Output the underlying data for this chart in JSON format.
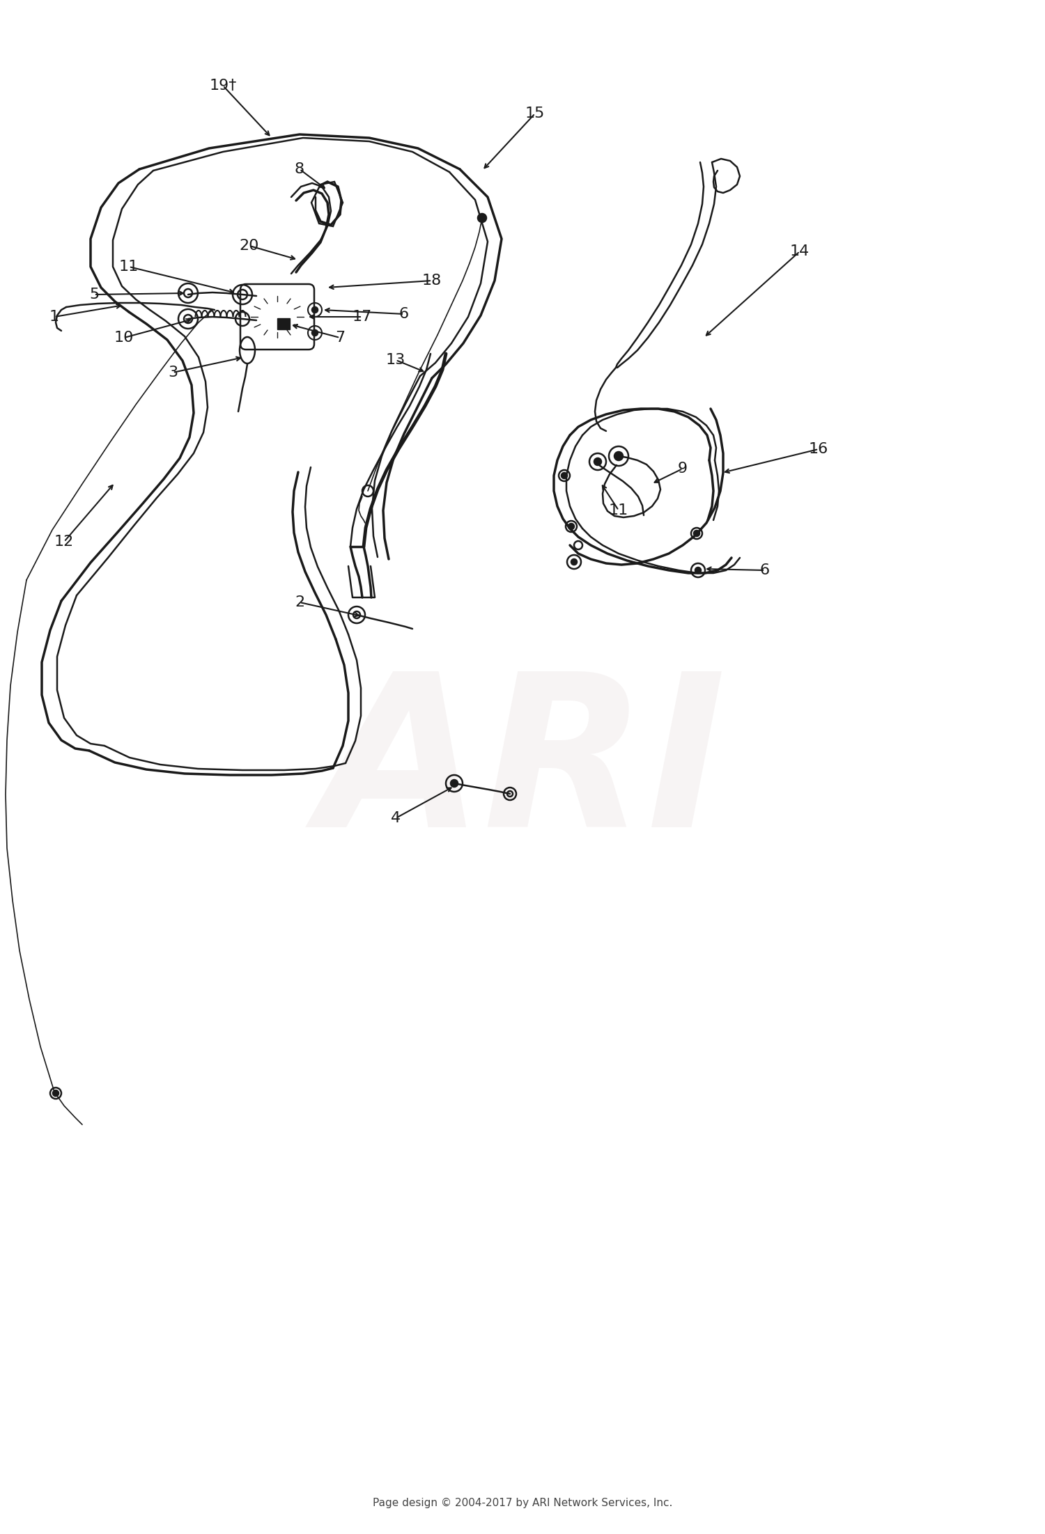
{
  "bg_color": "#ffffff",
  "line_color": "#1a1a1a",
  "text_color": "#1a1a1a",
  "watermark_color": "#ccbbbb",
  "watermark_text": "ARI",
  "watermark_alpha": 0.15,
  "footer_text": "Page design © 2004-2017 by ARI Network Services, Inc.",
  "figsize": [
    15.0,
    22.03
  ],
  "dpi": 100,
  "label_fontsize": 16
}
